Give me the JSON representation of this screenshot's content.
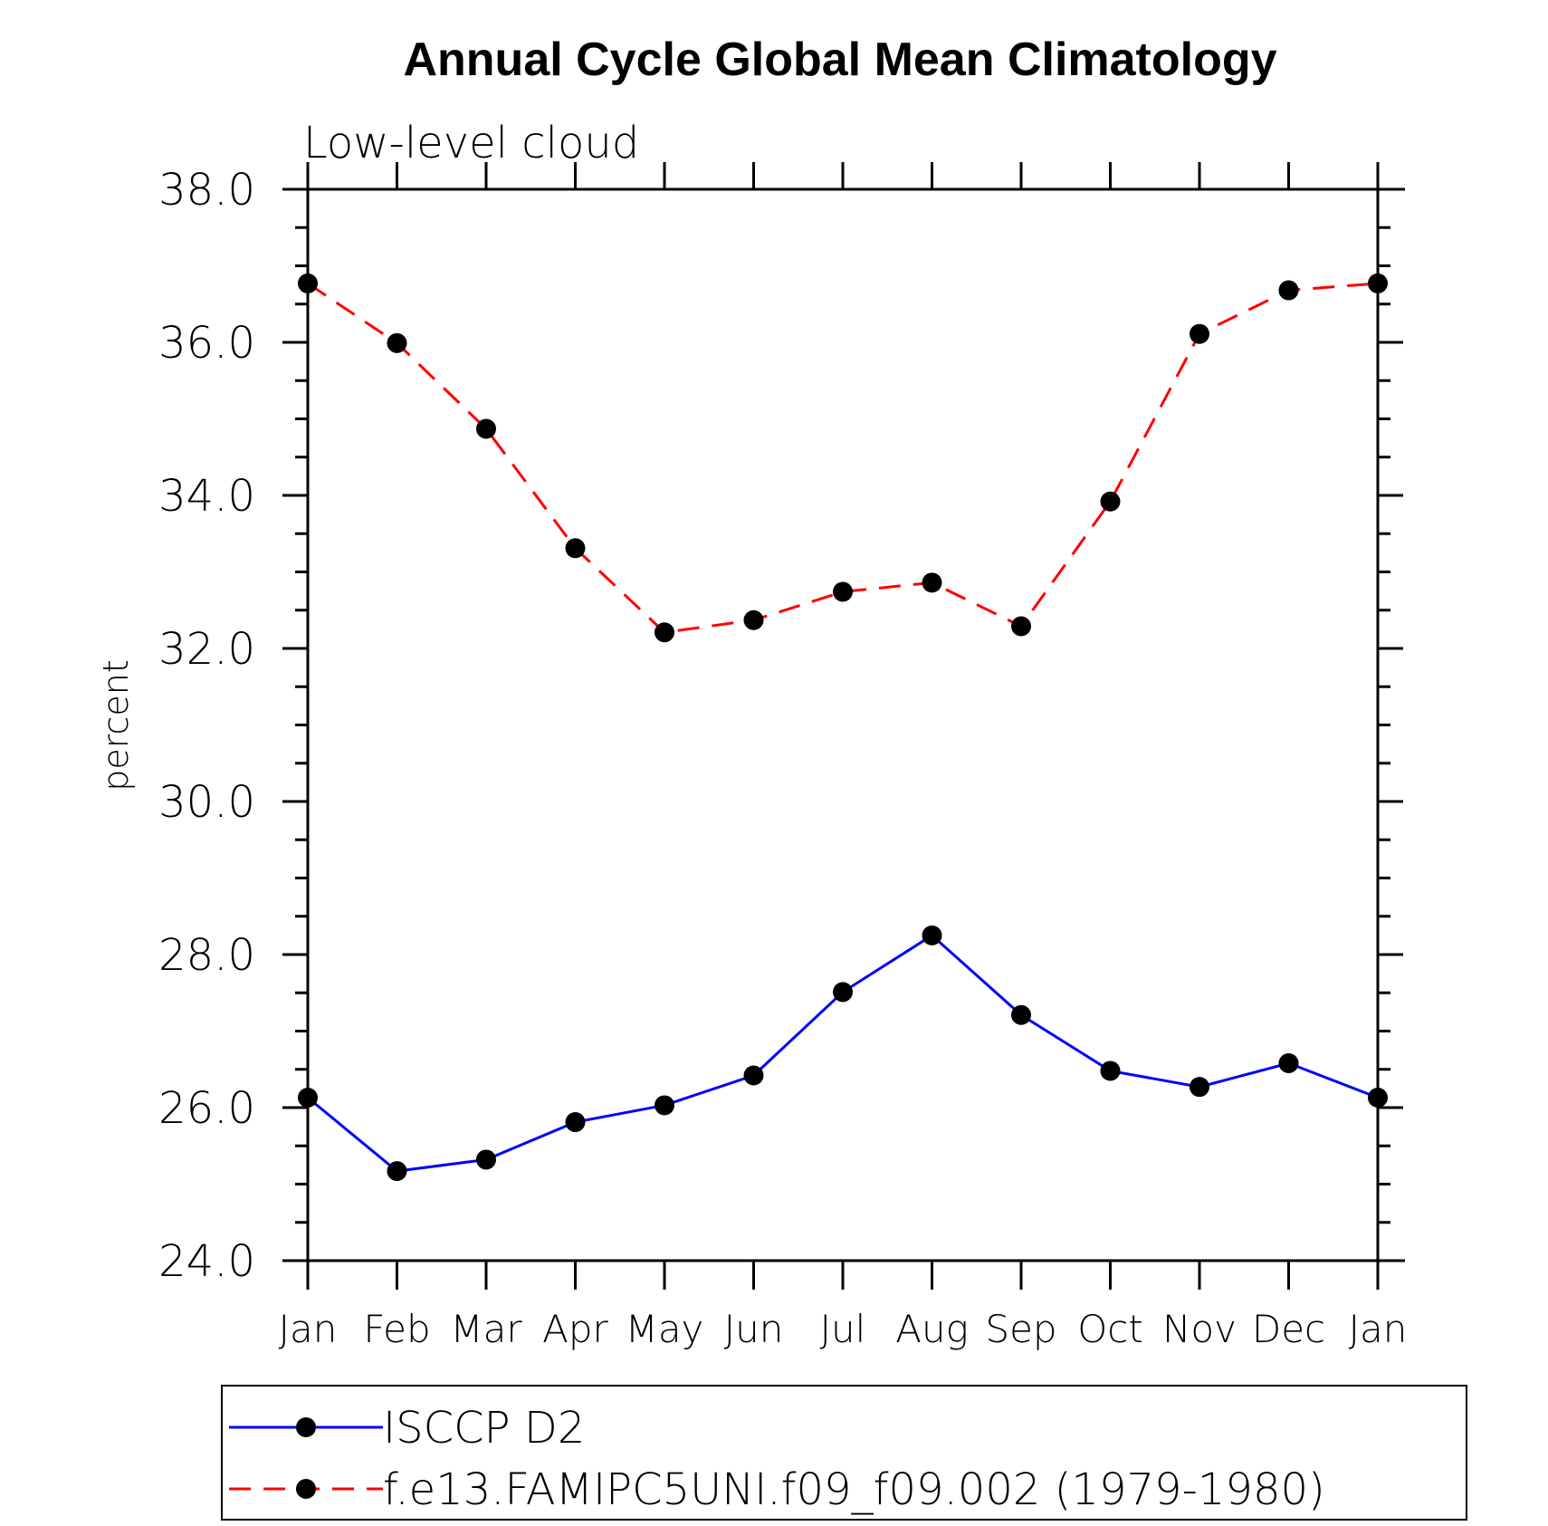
{
  "chart_data": {
    "type": "line",
    "title": "Annual Cycle Global Mean Climatology",
    "subtitle": "Low-level cloud",
    "ylabel": "percent",
    "xlabel": "",
    "categories": [
      "Jan",
      "Feb",
      "Mar",
      "Apr",
      "May",
      "Jun",
      "Jul",
      "Aug",
      "Sep",
      "Oct",
      "Nov",
      "Dec",
      "Jan"
    ],
    "ylim": [
      24.0,
      38.0
    ],
    "yticks": [
      "24.0",
      "26.0",
      "28.0",
      "30.0",
      "32.0",
      "34.0",
      "36.0",
      "38.0"
    ],
    "grid": false,
    "legend_position": "bottom",
    "series": [
      {
        "name": "ISCCP D2",
        "color": "#0000ff",
        "line_style": "solid",
        "marker": "filled-circle",
        "values": [
          26.13,
          25.17,
          25.32,
          25.81,
          26.03,
          26.42,
          27.51,
          28.25,
          27.21,
          26.48,
          26.27,
          26.58,
          26.13
        ]
      },
      {
        "name": "f.e13.FAMIPC5UNI.f09_f09.002 (1979-1980)",
        "color": "#ff0000",
        "line_style": "dashed",
        "marker": "filled-circle",
        "values": [
          36.77,
          35.99,
          34.87,
          33.31,
          32.21,
          32.37,
          32.74,
          32.86,
          32.29,
          33.92,
          36.11,
          36.68,
          36.77
        ]
      }
    ]
  }
}
